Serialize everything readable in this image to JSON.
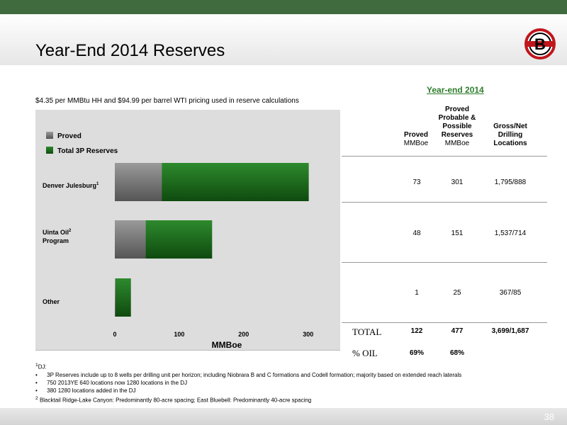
{
  "page": {
    "title": "Year-End 2014 Reserves",
    "pricing_note": "$4.35 per MMBtu HH and $94.99 per barrel WTI pricing used in reserve calculations",
    "page_number": "38",
    "logo_letter": "B"
  },
  "table": {
    "group_header": "Year-end 2014",
    "col_proved": {
      "title": "Proved",
      "unit": "MMBoe"
    },
    "col_3p": {
      "title_l1": "Proved",
      "title_l2": "Probable &",
      "title_l3": "Possible",
      "title_l4": "Reserves",
      "unit": "MMBoe"
    },
    "col_loc": {
      "title_l1": "Gross/Net",
      "title_l2": "Drilling",
      "title_l3": "Locations"
    },
    "rows": [
      {
        "proved": "73",
        "total": "301",
        "locations": "1,795/888"
      },
      {
        "proved": "48",
        "total": "151",
        "locations": "1,537/714"
      },
      {
        "proved": "1",
        "total": "25",
        "locations": "367/85"
      }
    ],
    "total_label": "TOTAL",
    "total": {
      "proved": "122",
      "total": "477",
      "locations": "3,699/1,687"
    },
    "oil_label": "% OIL",
    "oil": {
      "proved": "69%",
      "total": "68%"
    }
  },
  "footnotes": {
    "dj_head": "DJ:",
    "dj_sup": "1",
    "bullet1": "3P Reserves include up to 8 wells per drilling unit per horizon; including Niobrara B and C formations and Codell formation; majority based on extended reach laterals",
    "bullet2": "750 2013YE 640 locations now 1280 locations in the DJ",
    "bullet3": "380 1280 locations added in the DJ",
    "note2_sup": "2",
    "note2": "Blacktail Ridge-Lake Canyon: Predominantly 80-acre spacing; East Bluebell: Predominantly 40-acre spacing",
    "bullet": "•"
  },
  "chart_data": {
    "type": "bar",
    "orientation": "horizontal",
    "categories": [
      "Denver Julesburg",
      "Uinta Oil Program",
      "Other"
    ],
    "category_labels": [
      {
        "line1": "Denver Julesburg",
        "sup": "1",
        "line2": ""
      },
      {
        "line1": "Uinta Oil",
        "sup": "2",
        "line2": "Program"
      },
      {
        "line1": "Other",
        "sup": "",
        "line2": ""
      }
    ],
    "series": [
      {
        "name": "Proved",
        "values": [
          73,
          48,
          1
        ],
        "color": "#7a7a7a"
      },
      {
        "name": "Total 3P Reserves",
        "values": [
          301,
          151,
          25
        ],
        "color": "#1f6b1f"
      }
    ],
    "xlabel": "MMBoe",
    "xlim": [
      0,
      330
    ],
    "xticks": [
      "0",
      "100",
      "200",
      "300"
    ],
    "xtick_values": [
      0,
      100,
      200,
      300
    ],
    "legend_position": "top-left",
    "grid": false
  }
}
